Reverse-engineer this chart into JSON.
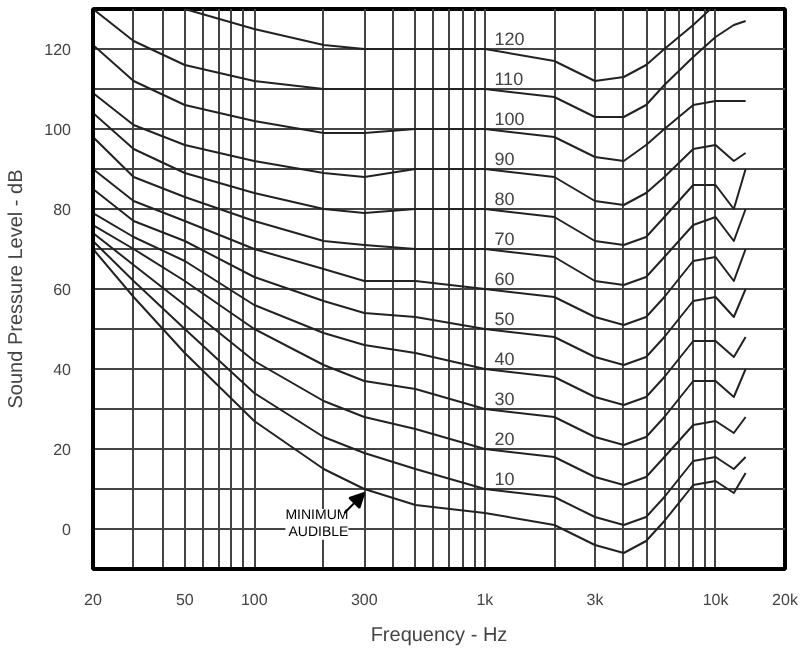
{
  "chart_data": {
    "type": "line",
    "xlabel": "Frequency - Hz",
    "ylabel": "Sound Pressure Level - dB",
    "log": "x",
    "grid": true,
    "marker": "none",
    "line_style": "solid",
    "xlim": [
      20,
      20000
    ],
    "ylim": [
      -10,
      130
    ],
    "xticks": [
      20,
      {
        "value": 30,
        "label": null
      },
      {
        "value": 40,
        "label": null
      },
      50,
      {
        "value": 60,
        "label": null
      },
      {
        "value": 70,
        "label": null
      },
      {
        "value": 80,
        "label": null
      },
      {
        "value": 90,
        "label": null
      },
      100,
      {
        "value": 200,
        "label": null
      },
      300,
      {
        "value": 400,
        "label": null
      },
      {
        "value": 500,
        "label": null
      },
      {
        "value": 600,
        "label": null
      },
      {
        "value": 700,
        "label": null
      },
      {
        "value": 800,
        "label": null
      },
      {
        "value": 900,
        "label": null
      },
      {
        "value": 1000,
        "label": "1k"
      },
      {
        "value": 2000,
        "label": null
      },
      {
        "value": 3000,
        "label": "3k"
      },
      {
        "value": 4000,
        "label": null
      },
      {
        "value": 5000,
        "label": null
      },
      {
        "value": 6000,
        "label": null
      },
      {
        "value": 7000,
        "label": null
      },
      {
        "value": 8000,
        "label": null
      },
      {
        "value": 9000,
        "label": null
      },
      {
        "value": 10000,
        "label": "10k"
      },
      {
        "value": 20000,
        "label": "20k"
      }
    ],
    "yticks": [
      0,
      {
        "value": 10,
        "label": null
      },
      20,
      {
        "value": 30,
        "label": null
      },
      40,
      {
        "value": 50,
        "label": null
      },
      60,
      {
        "value": 70,
        "label": null
      },
      80,
      {
        "value": 90,
        "label": null
      },
      100,
      {
        "value": 110,
        "label": null
      },
      120,
      {
        "value": 130,
        "label": null
      }
    ],
    "x": [
      20,
      30,
      50,
      100,
      200,
      300,
      500,
      1000,
      2000,
      3000,
      4000,
      5000,
      6000,
      8000,
      10000,
      12000,
      13500
    ],
    "series": [
      {
        "color": "#222222",
        "values": [
          70,
          58,
          44,
          27,
          15,
          10,
          6,
          4,
          1,
          -4,
          -6,
          -3,
          2,
          11,
          12,
          9,
          14
        ]
      },
      {
        "name": "10",
        "color": "#222222",
        "values": [
          72,
          62,
          50,
          34,
          23,
          19,
          15,
          10,
          8,
          3,
          1,
          3,
          8,
          17,
          18,
          15,
          18
        ]
      },
      {
        "name": "20",
        "color": "#222222",
        "values": [
          74,
          66,
          56,
          42,
          32,
          28,
          25,
          20,
          18,
          13,
          11,
          13,
          18,
          26,
          27,
          24,
          28
        ]
      },
      {
        "name": "30",
        "color": "#222222",
        "values": [
          76,
          70,
          62,
          50,
          41,
          37,
          35,
          30,
          28,
          23,
          21,
          23,
          28,
          37,
          37,
          33,
          40
        ]
      },
      {
        "name": "40",
        "color": "#222222",
        "values": [
          79,
          73,
          67,
          56,
          49,
          46,
          44,
          40,
          38,
          33,
          31,
          33,
          38,
          47,
          47,
          43,
          48
        ]
      },
      {
        "name": "50",
        "color": "#222222",
        "values": [
          85,
          77,
          72,
          63,
          57,
          54,
          53,
          50,
          48,
          43,
          41,
          43,
          48,
          57,
          58,
          53,
          60
        ]
      },
      {
        "name": "60",
        "color": "#222222",
        "values": [
          90,
          82,
          77,
          70,
          65,
          62,
          62,
          60,
          58,
          53,
          51,
          53,
          58,
          67,
          68,
          62,
          70
        ]
      },
      {
        "name": "70",
        "color": "#222222",
        "values": [
          98,
          88,
          83,
          77,
          72,
          71,
          70,
          70,
          68,
          62,
          61,
          63,
          68,
          76,
          78,
          72,
          80
        ]
      },
      {
        "name": "80",
        "color": "#222222",
        "values": [
          104,
          95,
          89,
          84,
          80,
          79,
          80,
          80,
          78,
          72,
          71,
          73,
          78,
          86,
          86,
          80,
          90
        ]
      },
      {
        "name": "90",
        "color": "#222222",
        "values": [
          109,
          101,
          96,
          92,
          89,
          88,
          90,
          90,
          88,
          82,
          81,
          84,
          88,
          95,
          96,
          92,
          94
        ]
      },
      {
        "name": "100",
        "color": "#222222",
        "values": [
          121,
          112,
          106,
          102,
          99,
          99,
          100,
          100,
          98,
          93,
          92,
          96,
          100,
          106,
          107,
          107,
          107
        ]
      },
      {
        "name": "110",
        "color": "#222222",
        "values": [
          130,
          122,
          116,
          112,
          110,
          110,
          110,
          110,
          108,
          103,
          103,
          106,
          111,
          118,
          123,
          126,
          127
        ]
      },
      {
        "name": "120",
        "color": "#222222",
        "x": [
          50,
          100,
          200,
          300,
          500,
          1000,
          2000,
          3000,
          4000,
          5000,
          6000,
          8000,
          9500
        ],
        "values": [
          130,
          125,
          121,
          120,
          120,
          120,
          117,
          112,
          113,
          116,
          120,
          126,
          130
        ]
      }
    ],
    "annotations": [
      {
        "text": "MINIMUM AUDIBLE",
        "x": 300,
        "y": 10
      }
    ]
  }
}
